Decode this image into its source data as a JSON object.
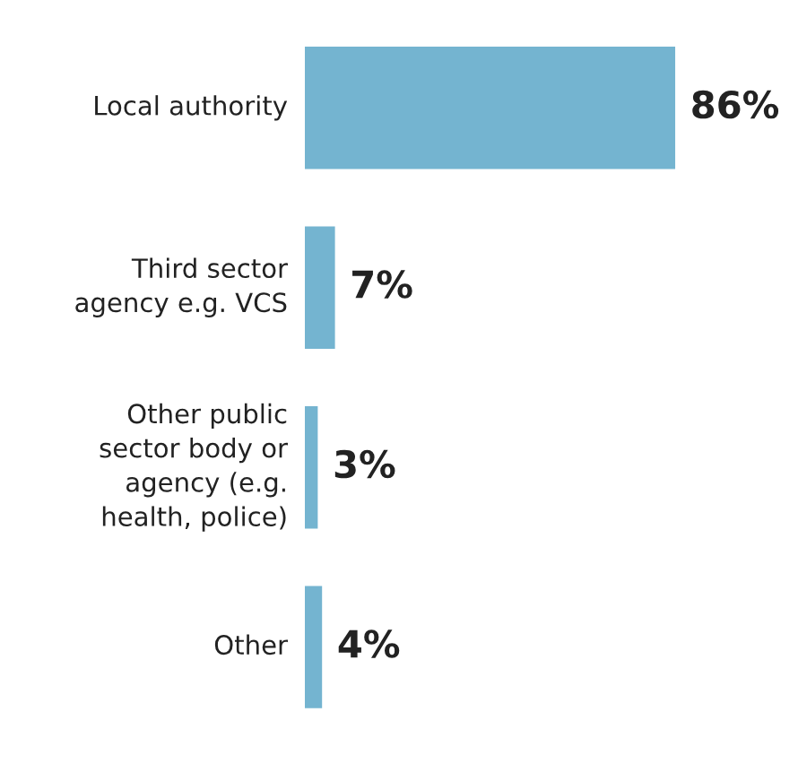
{
  "chart_data": {
    "type": "bar",
    "orientation": "horizontal",
    "categories": [
      "Local authority",
      "Third sector\nagency e.g. VCS",
      "Other public\nsector body or\nagency (e.g.\nhealth, police)",
      "Other"
    ],
    "values": [
      86,
      7,
      3,
      4
    ],
    "value_labels": [
      "86%",
      "7%",
      "3%",
      "4%"
    ],
    "color": "#74b4d0"
  }
}
